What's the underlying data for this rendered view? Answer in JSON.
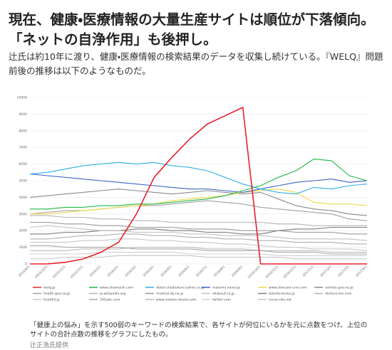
{
  "header": {
    "title": "現在、健康・医療情報の大量生産サイトは順位が下落傾向。「ネットの自浄作用」も後押し。"
  },
  "body": {
    "paragraph": "辻氏は約10年に渡り、健康・医療情報の検索結果のデータを収集し続けている。『WELQ』問題前後の推移は以下のようなものだ。"
  },
  "chart_data": {
    "type": "line",
    "categories": [
      "2015/9/1",
      "2015/10/1",
      "2015/11/1",
      "2015/12/1",
      "2016/1/1",
      "2016/2/1",
      "2016/3/1",
      "2016/4/1",
      "2016/5/1",
      "2016/6/1",
      "2016/7/1",
      "2016/8/1",
      "2016/9/1",
      "2016/10/1",
      "2016/11/1",
      "2016/12/1",
      "2017/1/1",
      "2017/2/1",
      "2017/3/1",
      "2017/4/1"
    ],
    "ylim": [
      0,
      10000
    ],
    "yticks": [
      0,
      1000,
      2000,
      3000,
      4000,
      5000,
      6000,
      7000,
      8000,
      9000,
      10000
    ],
    "grid": true,
    "legend": "bottom",
    "series": [
      {
        "name": "welq.jp",
        "color": "#e8202a",
        "values": [
          0,
          0,
          100,
          300,
          700,
          1300,
          3000,
          5200,
          6400,
          7500,
          8400,
          8900,
          9400,
          0,
          0,
          0,
          0,
          0,
          0,
          0
        ]
      },
      {
        "name": "www.ishamachi.com",
        "color": "#1fb84a",
        "values": [
          3300,
          3300,
          3400,
          3400,
          3500,
          3500,
          3600,
          3600,
          3700,
          3800,
          3900,
          4100,
          4400,
          4700,
          5200,
          5600,
          6300,
          6200,
          5300,
          5000
        ]
      },
      {
        "name": "detail.chiebukuro.yahoo.co.jp",
        "color": "#2fb0e0",
        "values": [
          5400,
          5500,
          5700,
          5900,
          6000,
          6100,
          6000,
          6100,
          5900,
          5800,
          5600,
          5200,
          4800,
          4500,
          4300,
          4200,
          4600,
          4500,
          4700,
          4800
        ]
      },
      {
        "name": "matome.naver.jp",
        "color": "#3f63c8",
        "values": [
          5400,
          5300,
          5200,
          5100,
          5000,
          4900,
          4800,
          4700,
          4600,
          4500,
          4500,
          4400,
          4300,
          4500,
          4700,
          4900,
          5000,
          5100,
          4900,
          5000
        ]
      },
      {
        "name": "www.skincare-univ.com",
        "color": "#f0d84a",
        "values": [
          3000,
          3000,
          3100,
          3200,
          3300,
          3400,
          3500,
          3600,
          3800,
          3900,
          4000,
          4100,
          4300,
          4400,
          4500,
          4300,
          3700,
          3600,
          3600,
          3500
        ]
      },
      {
        "name": "oshiete.goo.ne.jp",
        "color": "#8a8a8a",
        "values": [
          4000,
          4100,
          4200,
          4300,
          4400,
          4500,
          4400,
          4300,
          4200,
          4300,
          4400,
          4300,
          4200,
          4300,
          3900,
          3500,
          3300,
          3200,
          3000,
          2900
        ]
      },
      {
        "name": "health.goo.ne.jp",
        "color": "#a0a0a0",
        "values": [
          3000,
          3100,
          3200,
          3200,
          3300,
          3400,
          3500,
          3500,
          3600,
          3700,
          3800,
          3700,
          3600,
          3400,
          3300,
          3200,
          3100,
          3000,
          2700,
          2600
        ]
      },
      {
        "name": "ja.wikipedia.org",
        "color": "#b4b4b4",
        "values": [
          2900,
          2900,
          2800,
          2800,
          2700,
          2700,
          2600,
          2600,
          2500,
          2500,
          2500,
          2500,
          2500,
          2500,
          2400,
          2400,
          2300,
          2300,
          2300,
          2300
        ]
      },
      {
        "name": "medical.itp.ne.jp",
        "color": "#999999",
        "values": [
          2500,
          2500,
          2400,
          2400,
          2300,
          2300,
          2200,
          2200,
          2200,
          2100,
          2100,
          2100,
          2000,
          2000,
          2000,
          1900,
          1900,
          1900,
          1800,
          1800
        ]
      },
      {
        "name": "allabout.co.jp",
        "color": "#c0c0c0",
        "values": [
          2200,
          2300,
          2200,
          2100,
          2000,
          2000,
          1900,
          1900,
          1900,
          1800,
          1800,
          1700,
          1700,
          1700,
          1600,
          1500,
          1500,
          1500,
          1500,
          1400
        ]
      },
      {
        "name": "takeda-kenko.jp",
        "color": "#7a7a7a",
        "values": [
          1800,
          1800,
          1900,
          1900,
          2000,
          2000,
          2100,
          2100,
          2000,
          2000,
          1900,
          1900,
          1800,
          1800,
          2000,
          2100,
          2100,
          2200,
          2200,
          2200
        ]
      },
      {
        "name": "doctors-me.com",
        "color": "#b0b0b0",
        "values": [
          1500,
          1500,
          1600,
          1700,
          1700,
          1800,
          1800,
          1700,
          1700,
          1600,
          1600,
          1500,
          1500,
          1400,
          1400,
          1300,
          1300,
          1300,
          1200,
          1200
        ]
      },
      {
        "name": "healthil.jp",
        "color": "#c8c8c8",
        "values": [
          1300,
          1300,
          1300,
          1400,
          1400,
          1500,
          1500,
          1400,
          1400,
          1300,
          1300,
          1200,
          1200,
          1100,
          1000,
          1000,
          900,
          900,
          900,
          800
        ]
      },
      {
        "name": "192abc.com",
        "color": "#a8a8a8",
        "values": [
          1100,
          1100,
          1000,
          1000,
          1000,
          1000,
          900,
          900,
          900,
          900,
          800,
          800,
          800,
          800,
          700,
          700,
          700,
          600,
          600,
          600
        ]
      },
      {
        "name": "www.newton-doctor.com",
        "color": "#bcbcbc",
        "values": [
          800,
          800,
          800,
          900,
          900,
          900,
          1000,
          1000,
          1000,
          1000,
          900,
          900,
          900,
          800,
          800,
          800,
          800,
          700,
          700,
          700
        ]
      },
      {
        "name": "twitter.com",
        "color": "#d0d0d0",
        "values": [
          600,
          600,
          600,
          600,
          700,
          700,
          700,
          700,
          700,
          600,
          600,
          600,
          600,
          600,
          500,
          500,
          500,
          500,
          500,
          500
        ]
      },
      {
        "name": "nurse-riko.net",
        "color": "#c4c4c4",
        "values": [
          300,
          300,
          400,
          400,
          400,
          500,
          500,
          500,
          500,
          500,
          400,
          400,
          400,
          400,
          400,
          300,
          300,
          300,
          300,
          300
        ]
      }
    ]
  },
  "caption": {
    "text": "「健康上の悩み」を示す500弱のキーワードの検索結果で、各サイトが何位にいるかを元に点数をつけ、上位のサイトの合計点数の推移をグラフにしたもの。",
    "credit": "辻正浩氏提供"
  }
}
